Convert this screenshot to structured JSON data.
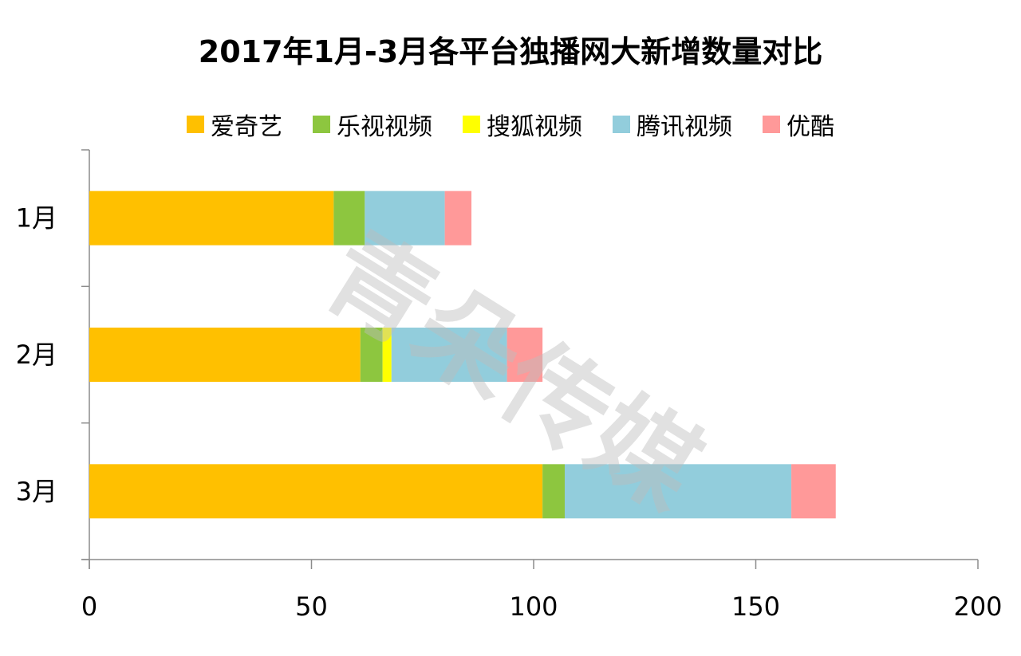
{
  "chart_data": {
    "type": "bar",
    "orientation": "horizontal",
    "stacked": true,
    "title": "2017年1月-3月各平台独播网大新增数量对比",
    "categories": [
      "1月",
      "2月",
      "3月"
    ],
    "series": [
      {
        "name": "爱奇艺",
        "color": "#FFC000",
        "values": [
          55,
          61,
          102
        ]
      },
      {
        "name": "乐视视频",
        "color": "#8DC63F",
        "values": [
          7,
          5,
          5
        ]
      },
      {
        "name": "搜狐视频",
        "color": "#FFFF00",
        "values": [
          0,
          2,
          0
        ]
      },
      {
        "name": "腾讯视频",
        "color": "#92CDDC",
        "values": [
          18,
          26,
          51
        ]
      },
      {
        "name": "优酷",
        "color": "#FF9999",
        "values": [
          6,
          8,
          10
        ]
      }
    ],
    "xlim": [
      0,
      200
    ],
    "xticks": [
      "0",
      "50",
      "100",
      "150",
      "200"
    ],
    "legend_position": "top",
    "grid": false
  },
  "watermark": "青朵传媒"
}
